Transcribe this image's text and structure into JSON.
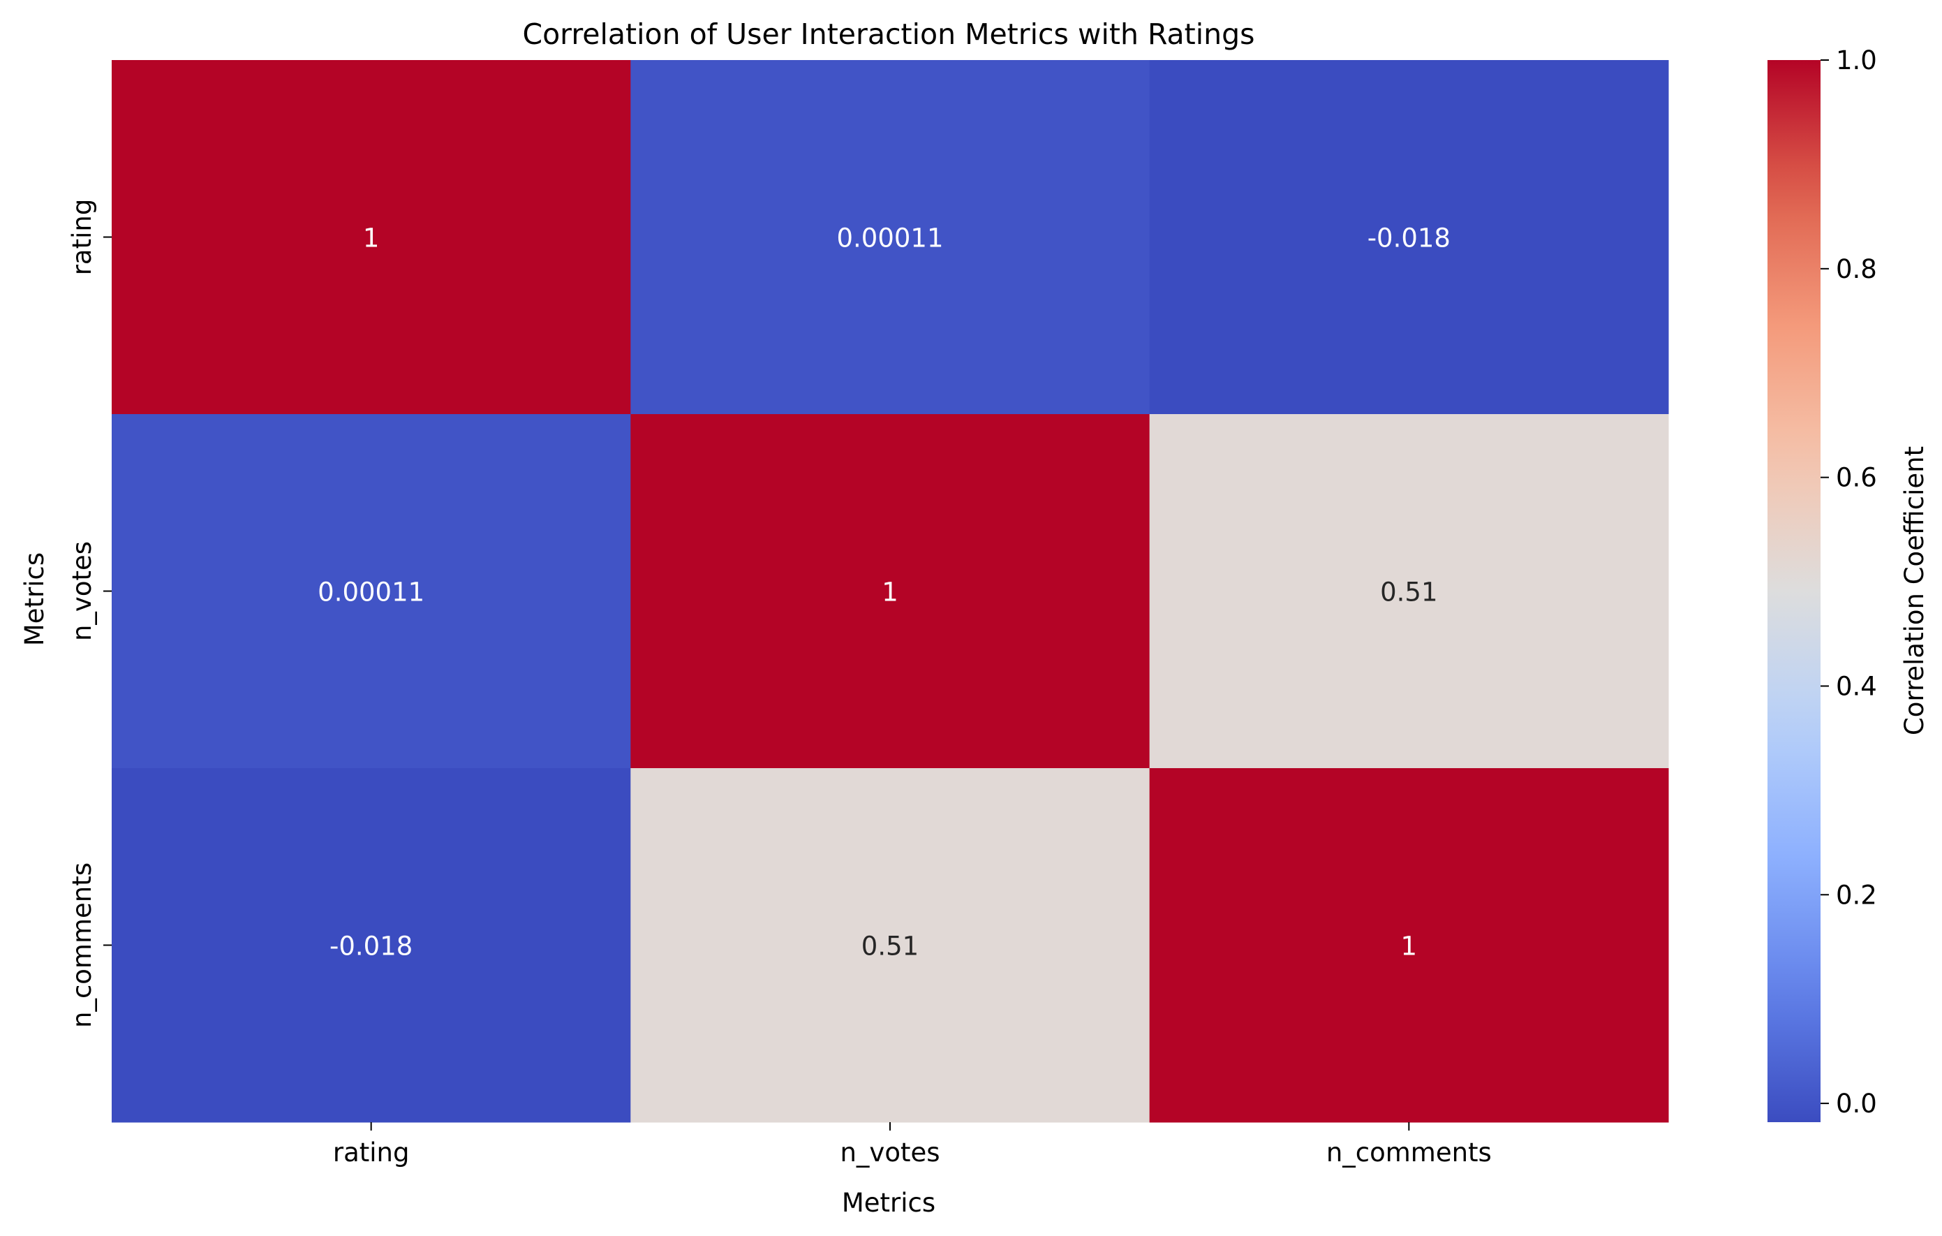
{
  "chart_data": {
    "type": "heatmap",
    "title": "Correlation of User Interaction Metrics with Ratings",
    "xlabel": "Metrics",
    "ylabel": "Metrics",
    "x_categories": [
      "rating",
      "n_votes",
      "n_comments"
    ],
    "y_categories": [
      "rating",
      "n_votes",
      "n_comments"
    ],
    "values": [
      [
        1,
        0.00011,
        -0.018
      ],
      [
        0.00011,
        1,
        0.51
      ],
      [
        -0.018,
        0.51,
        1
      ]
    ],
    "cell_labels": [
      [
        "1",
        "0.00011",
        "-0.018"
      ],
      [
        "0.00011",
        "1",
        "0.51"
      ],
      [
        "-0.018",
        "0.51",
        "1"
      ]
    ],
    "colormap": "coolwarm",
    "colorbar": {
      "label": "Correlation Coefficient",
      "range": [
        -0.018,
        1
      ],
      "ticks": [
        0.0,
        0.2,
        0.4,
        0.6,
        0.8,
        1.0
      ],
      "tick_labels": [
        "0.0",
        "0.2",
        "0.4",
        "0.6",
        "0.8",
        "1.0"
      ]
    }
  }
}
